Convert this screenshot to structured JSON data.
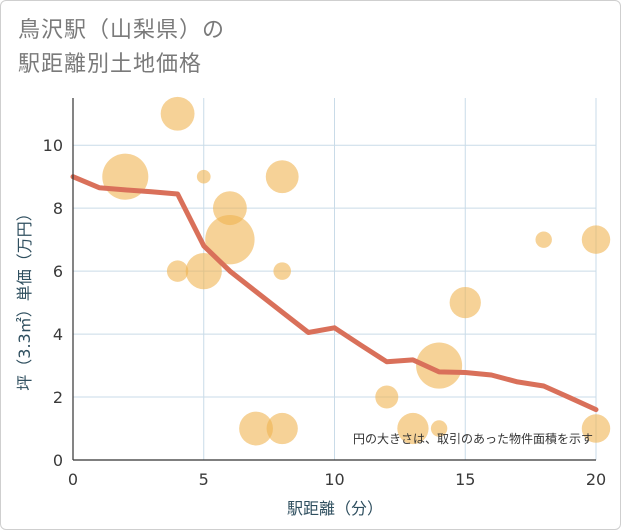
{
  "title_line1": "鳥沢駅（山梨県）の",
  "title_line2": "駅距離別土地価格",
  "chart_data": {
    "type": "scatter",
    "title": "鳥沢駅（山梨県）の駅距離別土地価格",
    "xlabel": "駅距離（分）",
    "ylabel": "坪（3.3㎡）単価（万円）",
    "xlim": [
      0,
      20
    ],
    "ylim": [
      0,
      11.5
    ],
    "x_ticks": [
      0,
      5,
      10,
      15,
      20
    ],
    "y_ticks": [
      0,
      2,
      4,
      6,
      8,
      10
    ],
    "grid": true,
    "note": "円の大きさは、取引のあった物件面積を示す",
    "colors": {
      "bubble": "#f0b452",
      "line": "#d9705a",
      "grid": "#c9dbe8"
    },
    "bubbles": [
      {
        "x": 2,
        "y": 9.0,
        "size": 6
      },
      {
        "x": 4,
        "y": 11.0,
        "size": 3
      },
      {
        "x": 4,
        "y": 6.0,
        "size": 1
      },
      {
        "x": 5,
        "y": 9.0,
        "size": 0.3
      },
      {
        "x": 5,
        "y": 6.0,
        "size": 3.5
      },
      {
        "x": 6,
        "y": 8.0,
        "size": 3
      },
      {
        "x": 6,
        "y": 7.0,
        "size": 7
      },
      {
        "x": 7,
        "y": 1.0,
        "size": 3
      },
      {
        "x": 8,
        "y": 9.0,
        "size": 2.8
      },
      {
        "x": 8,
        "y": 6.0,
        "size": 0.6
      },
      {
        "x": 8,
        "y": 1.0,
        "size": 2.5
      },
      {
        "x": 12,
        "y": 2.0,
        "size": 1.2
      },
      {
        "x": 13,
        "y": 1.0,
        "size": 2.5
      },
      {
        "x": 14,
        "y": 3.0,
        "size": 6
      },
      {
        "x": 14,
        "y": 1.0,
        "size": 0.5
      },
      {
        "x": 15,
        "y": 5.0,
        "size": 2.5
      },
      {
        "x": 18,
        "y": 7.0,
        "size": 0.5
      },
      {
        "x": 20,
        "y": 7.0,
        "size": 2
      },
      {
        "x": 20,
        "y": 1.0,
        "size": 2
      }
    ],
    "line": {
      "x": [
        0,
        1,
        2,
        3,
        4,
        5,
        6,
        7,
        8,
        9,
        10,
        11,
        12,
        13,
        14,
        15,
        16,
        17,
        18,
        19,
        20
      ],
      "y": [
        9.0,
        8.65,
        8.58,
        8.52,
        8.45,
        6.8,
        6.0,
        5.35,
        4.7,
        4.05,
        4.2,
        3.65,
        3.12,
        3.18,
        2.8,
        2.78,
        2.7,
        2.48,
        2.35,
        1.98,
        1.6
      ]
    }
  }
}
